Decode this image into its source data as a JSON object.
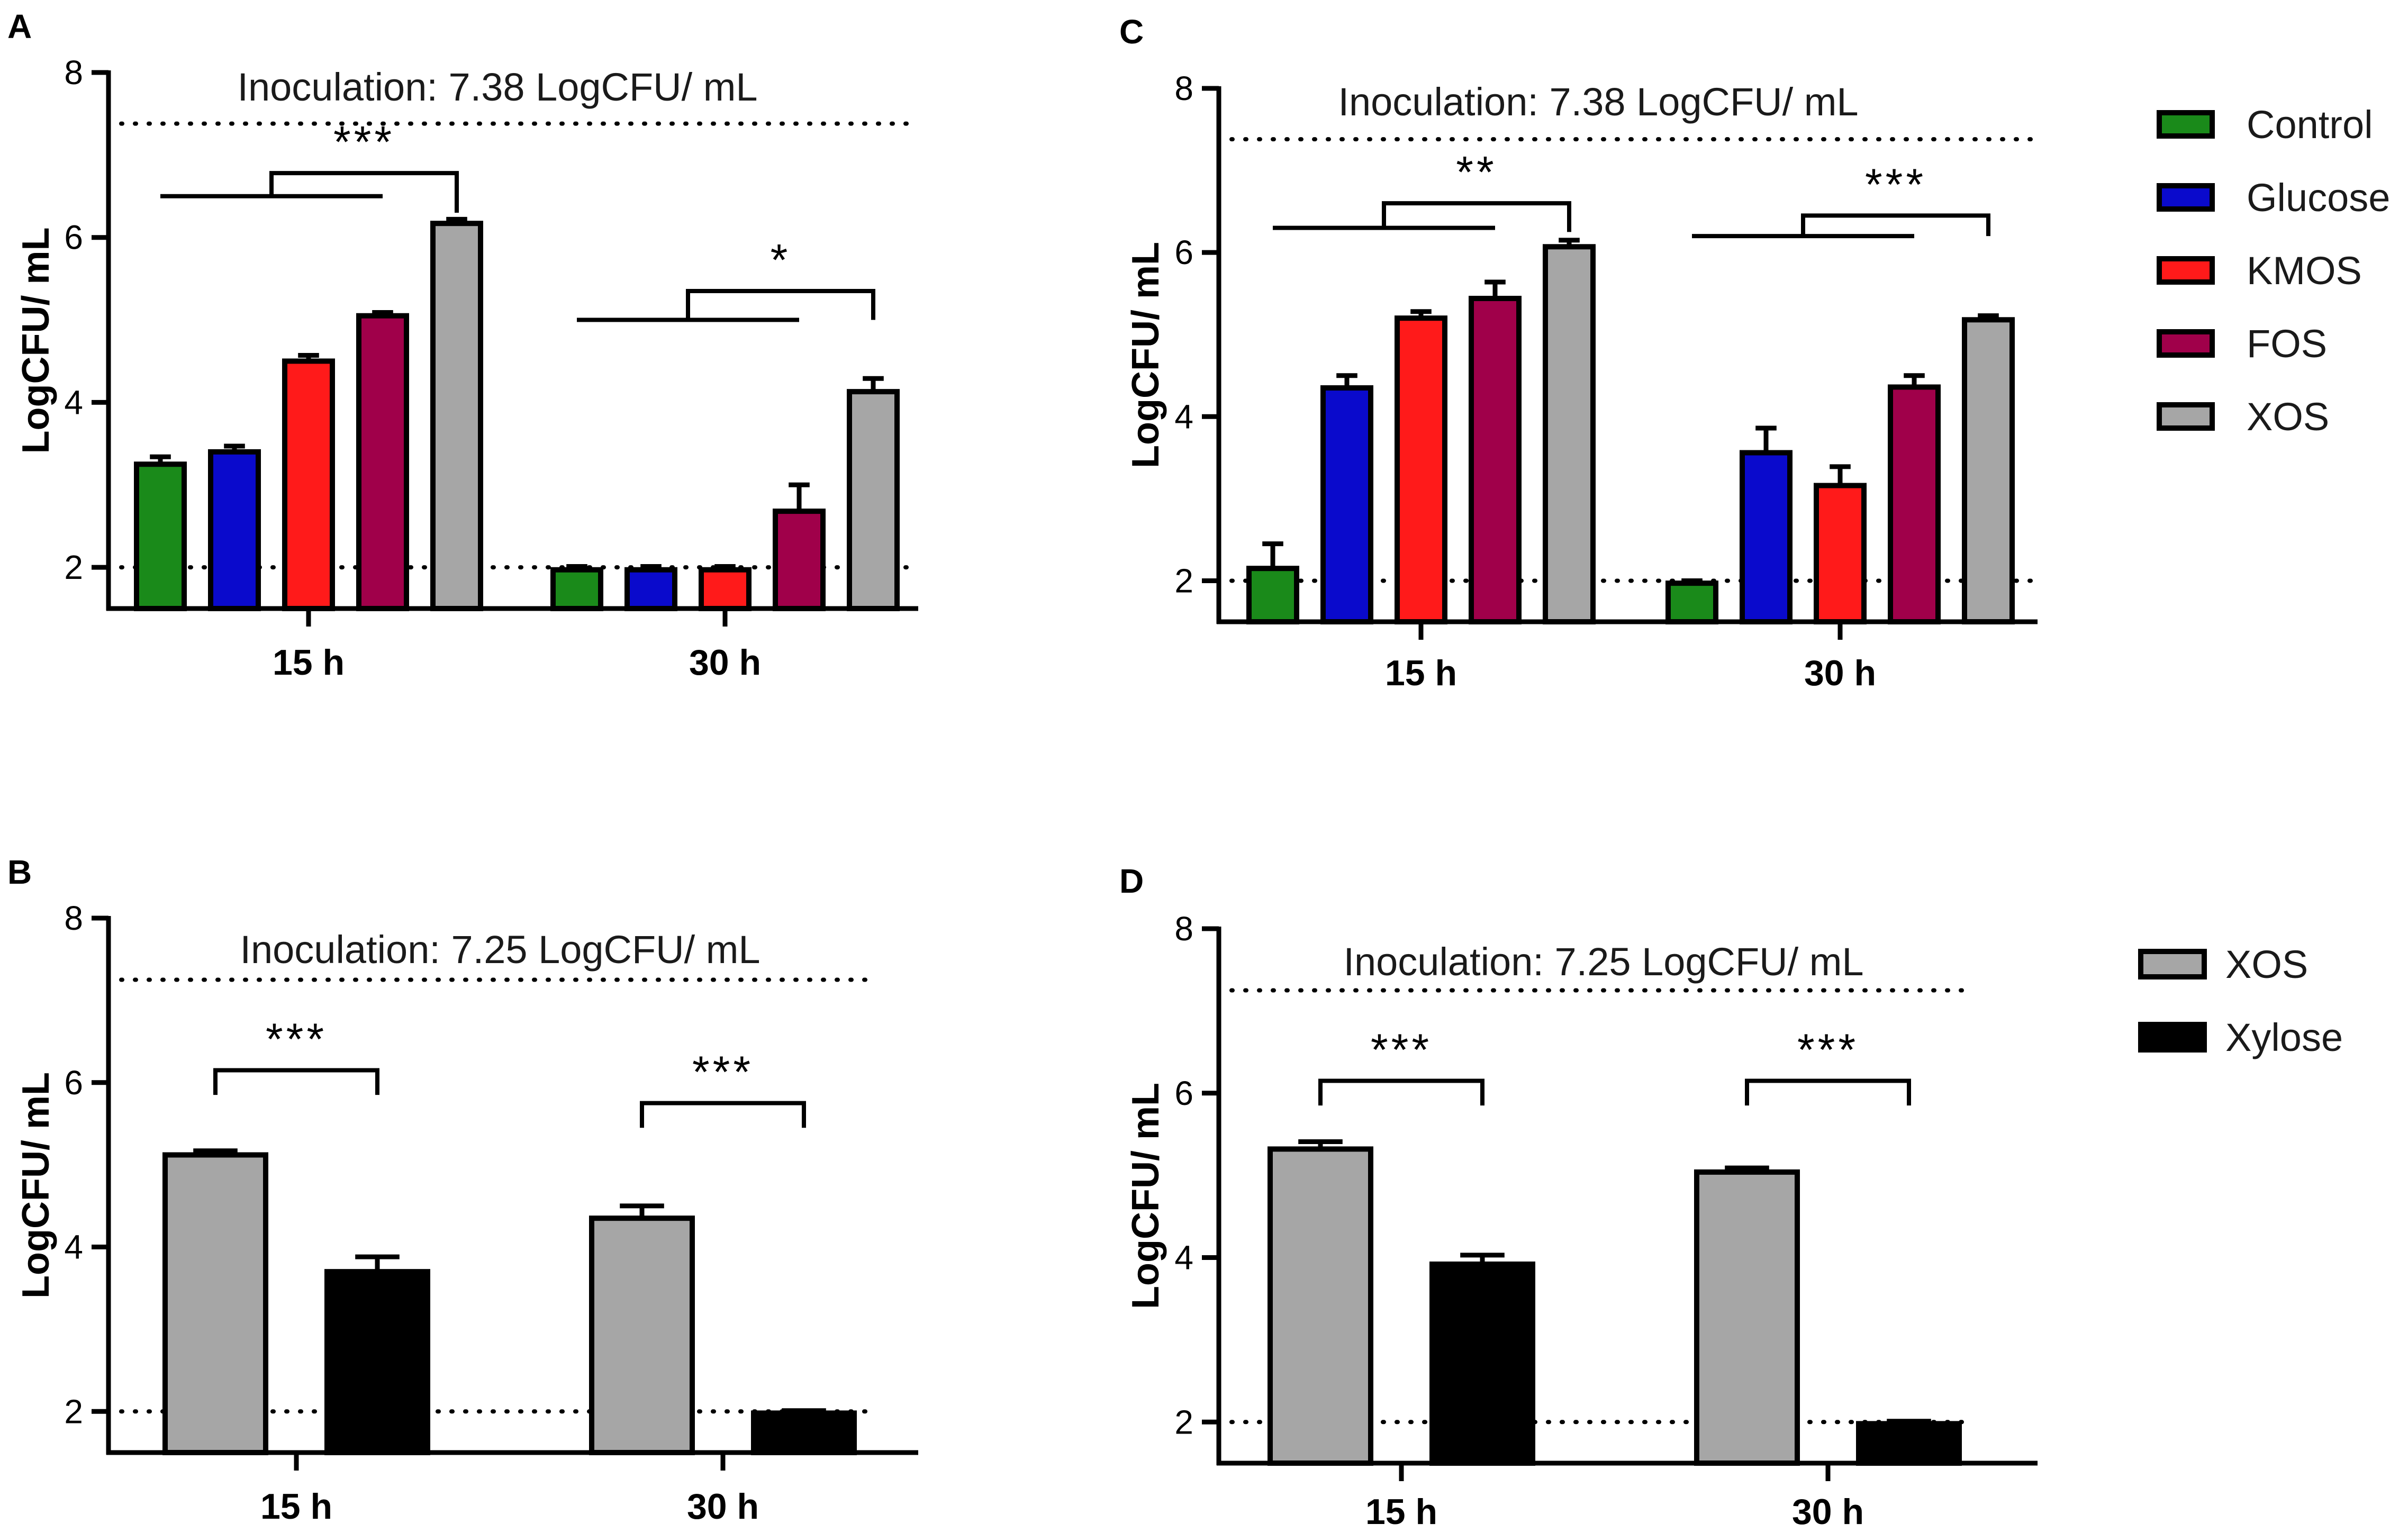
{
  "colors": {
    "Control": "#1a8a1a",
    "Glucose": "#0a0acc",
    "KMOS": "#ff1a1a",
    "FOS": "#a0004a",
    "XOS": "#a6a6a6",
    "Xylose": "#000000"
  },
  "legends": [
    {
      "entries": [
        "Control",
        "Glucose",
        "KMOS",
        "FOS",
        "XOS"
      ]
    },
    {
      "entries": [
        "XOS",
        "Xylose"
      ]
    }
  ],
  "chart_data": [
    {
      "panel": "A",
      "type": "bar",
      "ylabel": "LogCFU/ mL",
      "ylim": [
        1.5,
        8
      ],
      "yticks": [
        "2",
        "4",
        "6",
        "8"
      ],
      "categories": [
        "15 h",
        "30 h"
      ],
      "annotation": "Inoculation: 7.38 LogCFU/ mL",
      "reference_lines": [
        7.38,
        2.0
      ],
      "series": [
        {
          "name": "Control",
          "values": [
            3.25,
            1.97
          ],
          "errors": [
            0.09,
            0.04
          ]
        },
        {
          "name": "Glucose",
          "values": [
            3.4,
            1.97
          ],
          "errors": [
            0.07,
            0.04
          ]
        },
        {
          "name": "KMOS",
          "values": [
            4.5,
            1.97
          ],
          "errors": [
            0.07,
            0.04
          ]
        },
        {
          "name": "FOS",
          "values": [
            5.05,
            2.68
          ],
          "errors": [
            0.04,
            0.32
          ]
        },
        {
          "name": "XOS",
          "values": [
            6.17,
            4.13
          ],
          "errors": [
            0.05,
            0.16
          ]
        }
      ],
      "significance": [
        {
          "category": "15 h",
          "label": "***",
          "line_y": 6.5,
          "bracket_y": 6.78,
          "end_y": 6.3
        },
        {
          "category": "30 h",
          "label": "*",
          "line_y": 5.0,
          "bracket_y": 5.35,
          "end_y": 5.0
        }
      ]
    },
    {
      "panel": "C",
      "type": "bar",
      "ylabel": "LogCFU/ mL",
      "ylim": [
        1.5,
        8
      ],
      "yticks": [
        "2",
        "4",
        "6",
        "8"
      ],
      "categories": [
        "15 h",
        "30 h"
      ],
      "annotation": "Inoculation: 7.38 LogCFU/ mL",
      "reference_lines": [
        7.38,
        2.0
      ],
      "series": [
        {
          "name": "Control",
          "values": [
            2.15,
            1.97
          ],
          "errors": [
            0.3,
            0.03
          ]
        },
        {
          "name": "Glucose",
          "values": [
            4.35,
            3.56
          ],
          "errors": [
            0.15,
            0.3
          ]
        },
        {
          "name": "KMOS",
          "values": [
            5.2,
            3.16
          ],
          "errors": [
            0.08,
            0.23
          ]
        },
        {
          "name": "FOS",
          "values": [
            5.44,
            4.36
          ],
          "errors": [
            0.2,
            0.14
          ]
        },
        {
          "name": "XOS",
          "values": [
            6.07,
            5.18
          ],
          "errors": [
            0.08,
            0.05
          ]
        }
      ],
      "significance": [
        {
          "category": "15 h",
          "label": "**",
          "line_y": 6.3,
          "bracket_y": 6.6,
          "end_y": 6.25
        },
        {
          "category": "30 h",
          "label": "***",
          "line_y": 6.2,
          "bracket_y": 6.45,
          "end_y": 6.2
        }
      ]
    },
    {
      "panel": "B",
      "type": "bar",
      "ylabel": "LogCFU/ mL",
      "ylim": [
        1.5,
        8
      ],
      "yticks": [
        "2",
        "4",
        "6",
        "8"
      ],
      "categories": [
        "15 h",
        "30 h"
      ],
      "annotation": "Inoculation: 7.25 LogCFU/ mL",
      "reference_lines": [
        7.25,
        2.0
      ],
      "series": [
        {
          "name": "XOS",
          "values": [
            5.12,
            4.35
          ],
          "errors": [
            0.05,
            0.15
          ]
        },
        {
          "name": "Xylose",
          "values": [
            3.7,
            1.98
          ],
          "errors": [
            0.18,
            0.03
          ]
        }
      ],
      "significance": [
        {
          "category": "15 h",
          "label": "***",
          "bracket_y": 6.15,
          "end_y": 5.85
        },
        {
          "category": "30 h",
          "label": "***",
          "bracket_y": 5.75,
          "end_y": 5.45
        }
      ]
    },
    {
      "panel": "D",
      "type": "bar",
      "ylabel": "LogCFU/ mL",
      "ylim": [
        1.5,
        8
      ],
      "yticks": [
        "2",
        "4",
        "6",
        "8"
      ],
      "categories": [
        "15 h",
        "30 h"
      ],
      "annotation": "Inoculation: 7.25 LogCFU/ mL",
      "reference_lines": [
        7.25,
        2.0
      ],
      "series": [
        {
          "name": "XOS",
          "values": [
            5.32,
            5.04
          ],
          "errors": [
            0.09,
            0.05
          ]
        },
        {
          "name": "Xylose",
          "values": [
            3.92,
            1.98
          ],
          "errors": [
            0.11,
            0.03
          ]
        }
      ],
      "significance": [
        {
          "category": "15 h",
          "label": "***",
          "bracket_y": 6.15,
          "end_y": 5.85
        },
        {
          "category": "30 h",
          "label": "***",
          "bracket_y": 6.15,
          "end_y": 5.85
        }
      ]
    }
  ]
}
